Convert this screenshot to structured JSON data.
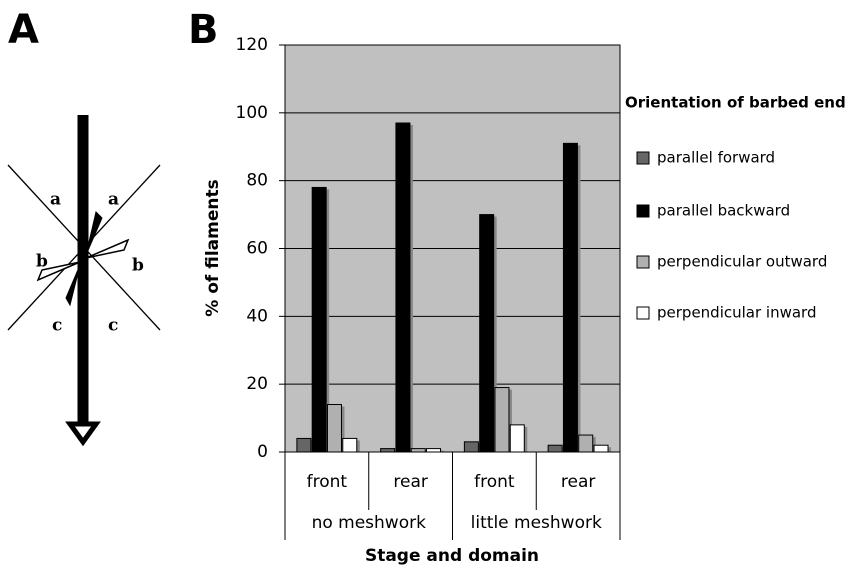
{
  "figure": {
    "panel_a": "A",
    "panel_b": "B",
    "diagram_labels": [
      "a",
      "a",
      "b",
      "b",
      "c",
      "c"
    ]
  },
  "chart_data": {
    "type": "bar",
    "y_label": "% of filaments",
    "x_label": "Stage and domain",
    "legend_title": "Orientation of barbed end",
    "categories": [
      "front",
      "rear",
      "front",
      "rear"
    ],
    "category_groups": [
      "no meshwork",
      "little meshwork"
    ],
    "series": [
      {
        "name": "parallel forward",
        "color": "#666666",
        "values": [
          4,
          1,
          3,
          2
        ]
      },
      {
        "name": "parallel backward",
        "color": "#000000",
        "values": [
          78,
          97,
          70,
          91
        ]
      },
      {
        "name": "perpendicular outward",
        "color": "#b0b0b0",
        "values": [
          14,
          1,
          19,
          5
        ]
      },
      {
        "name": "perpendicular inward",
        "color": "#ffffff",
        "values": [
          4,
          1,
          8,
          2
        ]
      }
    ],
    "ylim": [
      0,
      120
    ],
    "yticks": [
      0,
      20,
      40,
      60,
      80,
      100,
      120
    ],
    "grid": true
  }
}
